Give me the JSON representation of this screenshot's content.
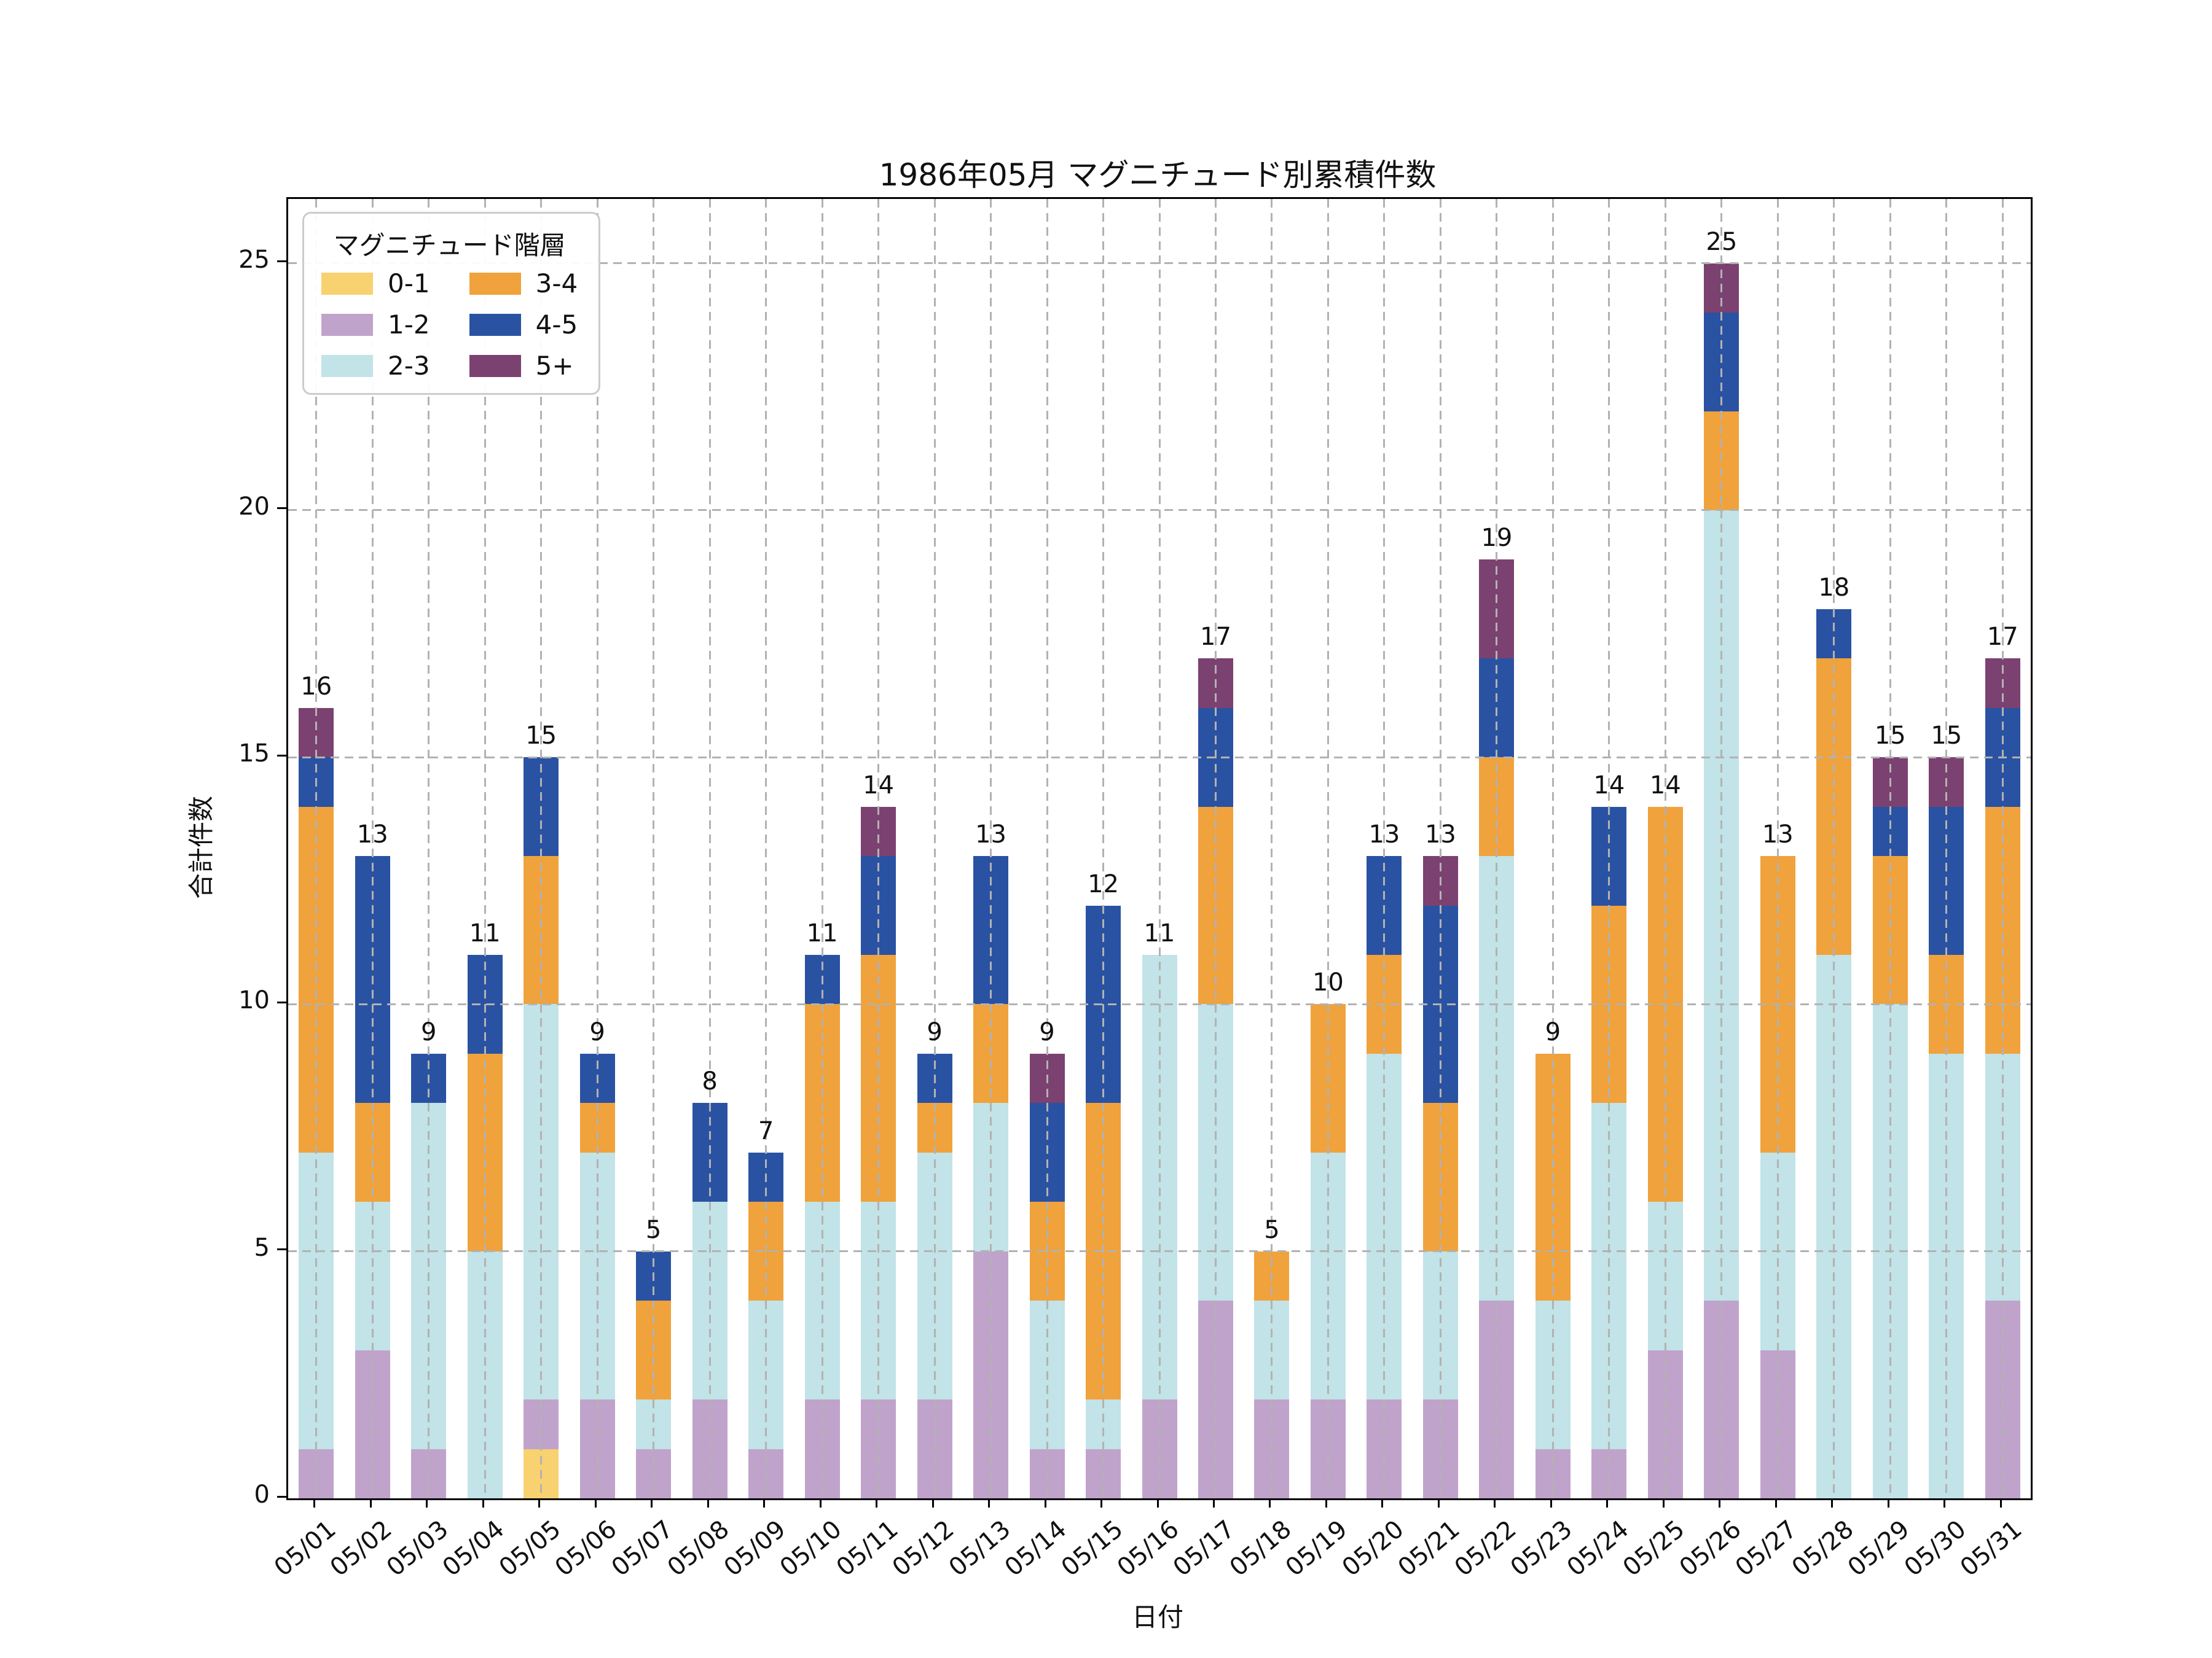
{
  "figure": {
    "title": "1986年05月 マグニチュード別累積件数",
    "xlabel": "日付",
    "ylabel": "合計件数",
    "yticks": [
      "0",
      "5",
      "10",
      "15",
      "20",
      "25"
    ]
  },
  "legend": {
    "title": "マグニチュード階層"
  },
  "chart_data": {
    "type": "bar",
    "stacked": true,
    "title": "1986年05月 マグニチュード別累積件数",
    "xlabel": "日付",
    "ylabel": "合計件数",
    "ylim": [
      0,
      26.3
    ],
    "yticks": [
      0,
      5,
      10,
      15,
      20,
      25
    ],
    "grid": true,
    "grid_style": "dashed-gray-over-bars",
    "legend_position": "upper left",
    "categories": [
      "05/01",
      "05/02",
      "05/03",
      "05/04",
      "05/05",
      "05/06",
      "05/07",
      "05/08",
      "05/09",
      "05/10",
      "05/11",
      "05/12",
      "05/13",
      "05/14",
      "05/15",
      "05/16",
      "05/17",
      "05/18",
      "05/19",
      "05/20",
      "05/21",
      "05/22",
      "05/23",
      "05/24",
      "05/25",
      "05/26",
      "05/27",
      "05/28",
      "05/29",
      "05/30",
      "05/31"
    ],
    "series": [
      {
        "name": "0-1",
        "color": "#f8d170",
        "values": [
          0,
          0,
          0,
          0,
          1,
          0,
          0,
          0,
          0,
          0,
          0,
          0,
          0,
          0,
          0,
          0,
          0,
          0,
          0,
          0,
          0,
          0,
          0,
          0,
          0,
          0,
          0,
          0,
          0,
          0,
          0
        ]
      },
      {
        "name": "1-2",
        "color": "#c0a3cb",
        "values": [
          1,
          3,
          1,
          0,
          1,
          2,
          1,
          2,
          1,
          2,
          2,
          2,
          5,
          1,
          1,
          2,
          4,
          2,
          2,
          2,
          2,
          4,
          1,
          1,
          3,
          4,
          3,
          0,
          0,
          0,
          4
        ]
      },
      {
        "name": "2-3",
        "color": "#c2e3e7",
        "values": [
          6,
          3,
          7,
          5,
          8,
          5,
          1,
          4,
          3,
          4,
          4,
          5,
          3,
          3,
          1,
          9,
          6,
          2,
          5,
          7,
          3,
          9,
          3,
          7,
          3,
          16,
          4,
          11,
          10,
          9,
          5
        ]
      },
      {
        "name": "3-4",
        "color": "#f0a23c",
        "values": [
          7,
          2,
          0,
          4,
          3,
          1,
          2,
          0,
          2,
          4,
          5,
          1,
          2,
          2,
          6,
          0,
          4,
          1,
          3,
          2,
          3,
          2,
          5,
          4,
          8,
          2,
          6,
          6,
          3,
          2,
          5
        ]
      },
      {
        "name": "4-5",
        "color": "#2a52a2",
        "values": [
          1,
          5,
          1,
          2,
          2,
          1,
          1,
          2,
          1,
          1,
          2,
          1,
          3,
          2,
          4,
          0,
          2,
          0,
          0,
          2,
          4,
          2,
          0,
          2,
          0,
          2,
          0,
          1,
          1,
          3,
          2
        ]
      },
      {
        "name": "5+",
        "color": "#7b4170",
        "values": [
          1,
          0,
          0,
          0,
          0,
          0,
          0,
          0,
          0,
          0,
          1,
          0,
          0,
          1,
          0,
          0,
          1,
          0,
          0,
          0,
          1,
          2,
          0,
          0,
          0,
          1,
          0,
          0,
          1,
          1,
          1
        ]
      }
    ],
    "totals": [
      16,
      13,
      9,
      11,
      15,
      9,
      5,
      8,
      7,
      11,
      14,
      9,
      13,
      9,
      12,
      11,
      17,
      5,
      10,
      13,
      13,
      19,
      9,
      14,
      14,
      25,
      13,
      18,
      15,
      15,
      17
    ]
  }
}
